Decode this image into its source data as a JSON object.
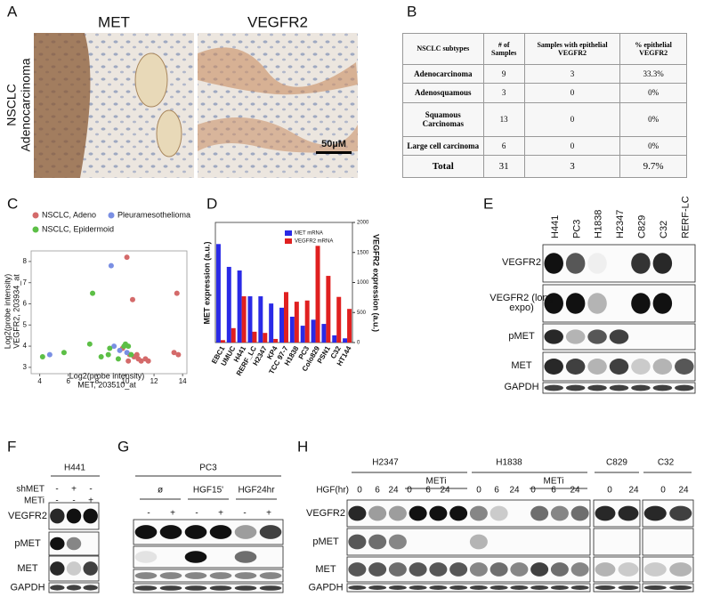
{
  "panel_labels": [
    "A",
    "B",
    "C",
    "D",
    "E",
    "F",
    "G",
    "H"
  ],
  "panel_a": {
    "stains": [
      "MET",
      "VEGFR2"
    ],
    "row_label": [
      "NSCLC",
      "Adenocarcinoma"
    ],
    "scale_bar": "50µM"
  },
  "table": {
    "header": [
      "NSCLC subtypes",
      "# of Samples",
      "Samples with epithelial VEGFR2",
      "% epithelial VEGFR2"
    ],
    "rows": [
      [
        "Adenocarcinoma",
        "9",
        "3",
        "33.3%"
      ],
      [
        "Adenosquamous",
        "3",
        "0",
        "0%"
      ],
      [
        "Squamous Carcinomas",
        "13",
        "0",
        "0%"
      ],
      [
        "Large cell carcinoma",
        "6",
        "0",
        "0%"
      ],
      [
        "Total",
        "31",
        "3",
        "9.7%"
      ]
    ]
  },
  "chart_data": [
    {
      "type": "scatter",
      "x_label": [
        "Log2(probe intensity)",
        "MET, 203510_at"
      ],
      "y_label": [
        "Log2(probe intensity)",
        "VEGFR2, 203934_at"
      ],
      "xlim": [
        3.4,
        14.3
      ],
      "ylim": [
        2.7,
        8.5
      ],
      "xticks": [
        4,
        6,
        8,
        10,
        12,
        14
      ],
      "yticks": [
        3,
        4,
        5,
        6,
        7,
        8
      ],
      "series": [
        {
          "name": "NSCLC, Adeno",
          "color": "#d46a6a",
          "x": [
            10.1,
            13.6,
            10.5,
            9.8,
            10.3,
            10.6,
            10.9,
            11.1,
            11.4,
            10.2,
            10.8,
            13.4,
            13.7,
            11.6
          ],
          "y": [
            8.2,
            6.5,
            6.2,
            3.9,
            3.6,
            3.5,
            3.4,
            3.3,
            3.4,
            3.3,
            3.6,
            3.7,
            3.6,
            3.3
          ]
        },
        {
          "name": "Pleuramesothelioma",
          "color": "#7a8fe3",
          "x": [
            9.0,
            9.2,
            9.6,
            4.7,
            10.1
          ],
          "y": [
            7.8,
            4.0,
            3.8,
            3.6,
            3.7
          ]
        },
        {
          "name": "NSCLC, Epidermoid",
          "color": "#5cbf46",
          "x": [
            7.7,
            4.2,
            5.7,
            7.5,
            8.8,
            10.2,
            10.0,
            8.3,
            9.5,
            10.4,
            9.9,
            8.9
          ],
          "y": [
            6.5,
            3.5,
            3.7,
            4.1,
            3.6,
            4.0,
            4.1,
            3.5,
            3.4,
            3.6,
            4.0,
            3.9
          ]
        }
      ]
    },
    {
      "type": "bar",
      "y_label": "MET expression (a.u.)",
      "y2_label": "VEGFR2 expression (a.u.)",
      "legend": "top-right",
      "categories": [
        "EBC1",
        "UMUC",
        "H441",
        "RERF_LC",
        "H2347",
        "KP4",
        "TCC 97-7",
        "H1838",
        "PC3",
        "Colo829",
        "PSN1",
        "C32",
        "HT144"
      ],
      "ylim": [
        0,
        2000
      ],
      "y2lim": [
        0,
        2000
      ],
      "y2ticks": [
        0,
        500,
        1000,
        1500,
        2000
      ],
      "series": [
        {
          "name": "MET mRNA",
          "color": "#2a2ae6",
          "values": [
            1640,
            1260,
            1200,
            770,
            770,
            650,
            580,
            430,
            280,
            380,
            310,
            120,
            70
          ]
        },
        {
          "name": "VEGFR2 mRNA",
          "color": "#e02020",
          "axis": "y2",
          "values": [
            40,
            240,
            770,
            180,
            160,
            60,
            840,
            680,
            700,
            1610,
            1110,
            760,
            560
          ]
        }
      ]
    }
  ],
  "panel_e": {
    "lanes": [
      "H441",
      "PC3",
      "H1838",
      "H2347",
      "C829",
      "C32",
      "RERF-LC"
    ],
    "rows": [
      "VEGFR2",
      "VEGFR2 (long expo)",
      "pMET",
      "MET",
      "GAPDH"
    ]
  },
  "panel_f": {
    "cell_line": "H441",
    "conditions": [
      "shMET",
      "METi"
    ],
    "signs": [
      [
        "-",
        "+",
        "-"
      ],
      [
        "-",
        "-",
        "+"
      ]
    ],
    "rows": [
      "VEGFR2",
      "pMET",
      "MET",
      "GAPDH"
    ]
  },
  "panel_g": {
    "cell_line": "PC3",
    "groups": [
      "ø",
      "HGF15'",
      "HGF24hr"
    ],
    "signs": [
      "-",
      "+",
      "-",
      "+",
      "-",
      "+"
    ],
    "rows": [
      "VEGFR2",
      "pMET",
      "MET",
      "GAPDH"
    ]
  },
  "panel_h": {
    "cell_lines": [
      "H2347",
      "H1838",
      "C829",
      "C32"
    ],
    "inhibitor": [
      "METi",
      "METi"
    ],
    "time_label": "HGF(hr)",
    "times": [
      "0",
      "6",
      "24",
      "0",
      "6",
      "24",
      "0",
      "6",
      "24",
      "0",
      "6",
      "24",
      "0",
      "24",
      "0",
      "24"
    ],
    "rows": [
      "VEGFR2",
      "pMET",
      "MET",
      "GAPDH"
    ]
  }
}
